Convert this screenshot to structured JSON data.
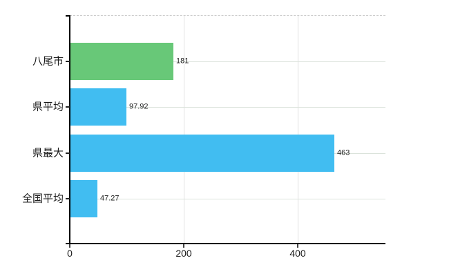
{
  "chart_data": {
    "type": "bar",
    "orientation": "horizontal",
    "title": "",
    "xlabel": "",
    "ylabel": "",
    "categories": [
      "八尾市",
      "県平均",
      "県最大",
      "全国平均"
    ],
    "values": [
      181,
      97.92,
      463,
      47.27
    ],
    "value_labels": [
      "181",
      "97.92",
      "463",
      "47.27"
    ],
    "bar_colors": [
      "#68c878",
      "#41bdf1",
      "#41bdf1",
      "#41bdf1"
    ],
    "xlim": [
      0,
      554
    ],
    "x_ticks": [
      0,
      200,
      400
    ],
    "x_tick_labels": [
      "0",
      "200",
      "400"
    ],
    "grid": true,
    "legend": false,
    "legend_position": "none"
  },
  "colors": {
    "bar_green": "#68c878",
    "bar_blue": "#41bdf1",
    "axis": "#000000",
    "h_gridline": "#dbe3db",
    "v_gridline": "#e0e0e0",
    "top_border": "#cccccc",
    "text": "#1a1a1a"
  }
}
